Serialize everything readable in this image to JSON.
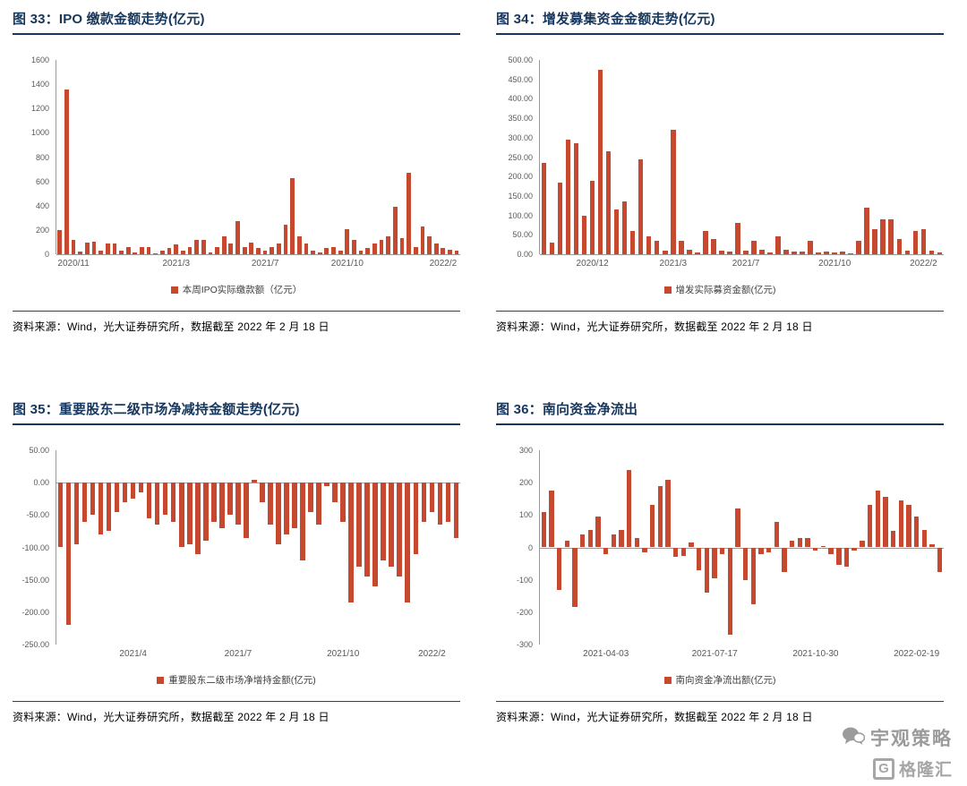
{
  "colors": {
    "bar": "#C6492F",
    "title_navy": "#17365D",
    "axis_gray": "#9a9a9a",
    "tick_text": "#595959"
  },
  "watermark": {
    "brand": "宇观策略",
    "logo_text": "格隆汇"
  },
  "chart_data": [
    {
      "id": "ipo-payment",
      "type": "bar",
      "title": "图 33：IPO 缴款金额走势(亿元)",
      "legend": "本周IPO实际缴款额（亿元）",
      "source": "资料来源：Wind，光大证券研究所，数据截至 2022 年 2 月 18 日",
      "ylim": [
        0,
        1600
      ],
      "grid": false,
      "legend_position": "bottom",
      "y_ticks": [
        "1600",
        "1400",
        "1200",
        "1000",
        "800",
        "600",
        "400",
        "200",
        "0"
      ],
      "x_labels": [
        {
          "label": "2020/11",
          "index": 2
        },
        {
          "label": "2021/3",
          "index": 17
        },
        {
          "label": "2021/7",
          "index": 30
        },
        {
          "label": "2021/10",
          "index": 42
        },
        {
          "label": "2022/2",
          "index": 56
        }
      ],
      "values": [
        200,
        1360,
        120,
        25,
        95,
        100,
        30,
        90,
        85,
        30,
        60,
        15,
        60,
        60,
        8,
        30,
        55,
        80,
        30,
        60,
        120,
        115,
        15,
        60,
        145,
        90,
        270,
        60,
        95,
        55,
        30,
        60,
        90,
        240,
        630,
        150,
        90,
        30,
        15,
        55,
        60,
        30,
        210,
        120,
        30,
        55,
        90,
        120,
        150,
        390,
        130,
        670,
        60,
        230,
        150,
        90,
        55,
        40,
        30
      ]
    },
    {
      "id": "seo-raised",
      "type": "bar",
      "title": "图 34：增发募集资金金额走势(亿元)",
      "legend": "增发实际募资金额(亿元)",
      "source": "资料来源：Wind，光大证券研究所，数据截至 2022 年 2 月 18 日",
      "ylim": [
        0,
        500
      ],
      "grid": false,
      "legend_position": "bottom",
      "y_ticks": [
        "500.00",
        "450.00",
        "400.00",
        "350.00",
        "300.00",
        "250.00",
        "200.00",
        "150.00",
        "100.00",
        "50.00",
        "0.00"
      ],
      "x_labels": [
        {
          "label": "2020/12",
          "index": 6
        },
        {
          "label": "2021/3",
          "index": 16
        },
        {
          "label": "2021/7",
          "index": 25
        },
        {
          "label": "2021/10",
          "index": 36
        },
        {
          "label": "2022/2",
          "index": 47
        }
      ],
      "values": [
        235,
        30,
        185,
        295,
        285,
        100,
        190,
        475,
        265,
        115,
        135,
        60,
        245,
        45,
        35,
        10,
        320,
        35,
        12,
        5,
        60,
        40,
        10,
        8,
        80,
        10,
        35,
        12,
        5,
        45,
        12,
        6,
        8,
        35,
        5,
        8,
        4,
        6,
        3,
        35,
        120,
        65,
        90,
        90,
        40,
        10,
        60,
        65,
        10,
        5
      ]
    },
    {
      "id": "major-shareholder-net",
      "type": "bar",
      "title": "图 35：重要股东二级市场净减持金额走势(亿元)",
      "legend": "重要股东二级市场净增持金额(亿元)",
      "source": "资料来源：Wind，光大证券研究所，数据截至 2022 年 2 月 18 日",
      "ylim": [
        -250,
        50
      ],
      "grid": false,
      "legend_position": "bottom",
      "y_ticks": [
        "50.00",
        "0.00",
        "-50.00",
        "-100.00",
        "-150.00",
        "-200.00",
        "-250.00"
      ],
      "x_labels": [
        {
          "label": "2021/4",
          "index": 9
        },
        {
          "label": "2021/7",
          "index": 22
        },
        {
          "label": "2021/10",
          "index": 35
        },
        {
          "label": "2022/2",
          "index": 46
        }
      ],
      "values": [
        -100,
        -220,
        -95,
        -60,
        -50,
        -80,
        -75,
        -45,
        -30,
        -25,
        -15,
        -55,
        -65,
        -50,
        -60,
        -100,
        -95,
        -110,
        -90,
        -60,
        -70,
        -50,
        -65,
        -85,
        5,
        -30,
        -65,
        -95,
        -80,
        -70,
        -120,
        -45,
        -65,
        -5,
        -30,
        -60,
        -185,
        -130,
        -145,
        -160,
        -120,
        -130,
        -145,
        -185,
        -110,
        -60,
        -45,
        -65,
        -60,
        -85
      ]
    },
    {
      "id": "southbound-outflow",
      "type": "bar",
      "title": "图 36：南向资金净流出",
      "legend": "南向资金净流出额(亿元)",
      "source": "资料来源：Wind，光大证券研究所，数据截至 2022 年 2 月 18 日",
      "ylim": [
        -300,
        300
      ],
      "grid": false,
      "legend_position": "bottom",
      "y_ticks": [
        "300",
        "200",
        "100",
        "0",
        "-100",
        "-200",
        "-300"
      ],
      "x_labels": [
        {
          "label": "2021-04-03",
          "index": 8
        },
        {
          "label": "2021-07-17",
          "index": 22
        },
        {
          "label": "2021-10-30",
          "index": 35
        },
        {
          "label": "2022-02-19",
          "index": 48
        }
      ],
      "values": [
        110,
        175,
        -130,
        20,
        -185,
        40,
        55,
        95,
        -20,
        40,
        55,
        240,
        30,
        -15,
        130,
        190,
        210,
        -30,
        -25,
        15,
        -70,
        -140,
        -95,
        -20,
        -270,
        120,
        -100,
        -175,
        -20,
        -15,
        80,
        -75,
        20,
        30,
        30,
        -10,
        5,
        -20,
        -55,
        -60,
        -10,
        20,
        130,
        175,
        155,
        50,
        145,
        130,
        95,
        55,
        10,
        -75
      ]
    }
  ]
}
